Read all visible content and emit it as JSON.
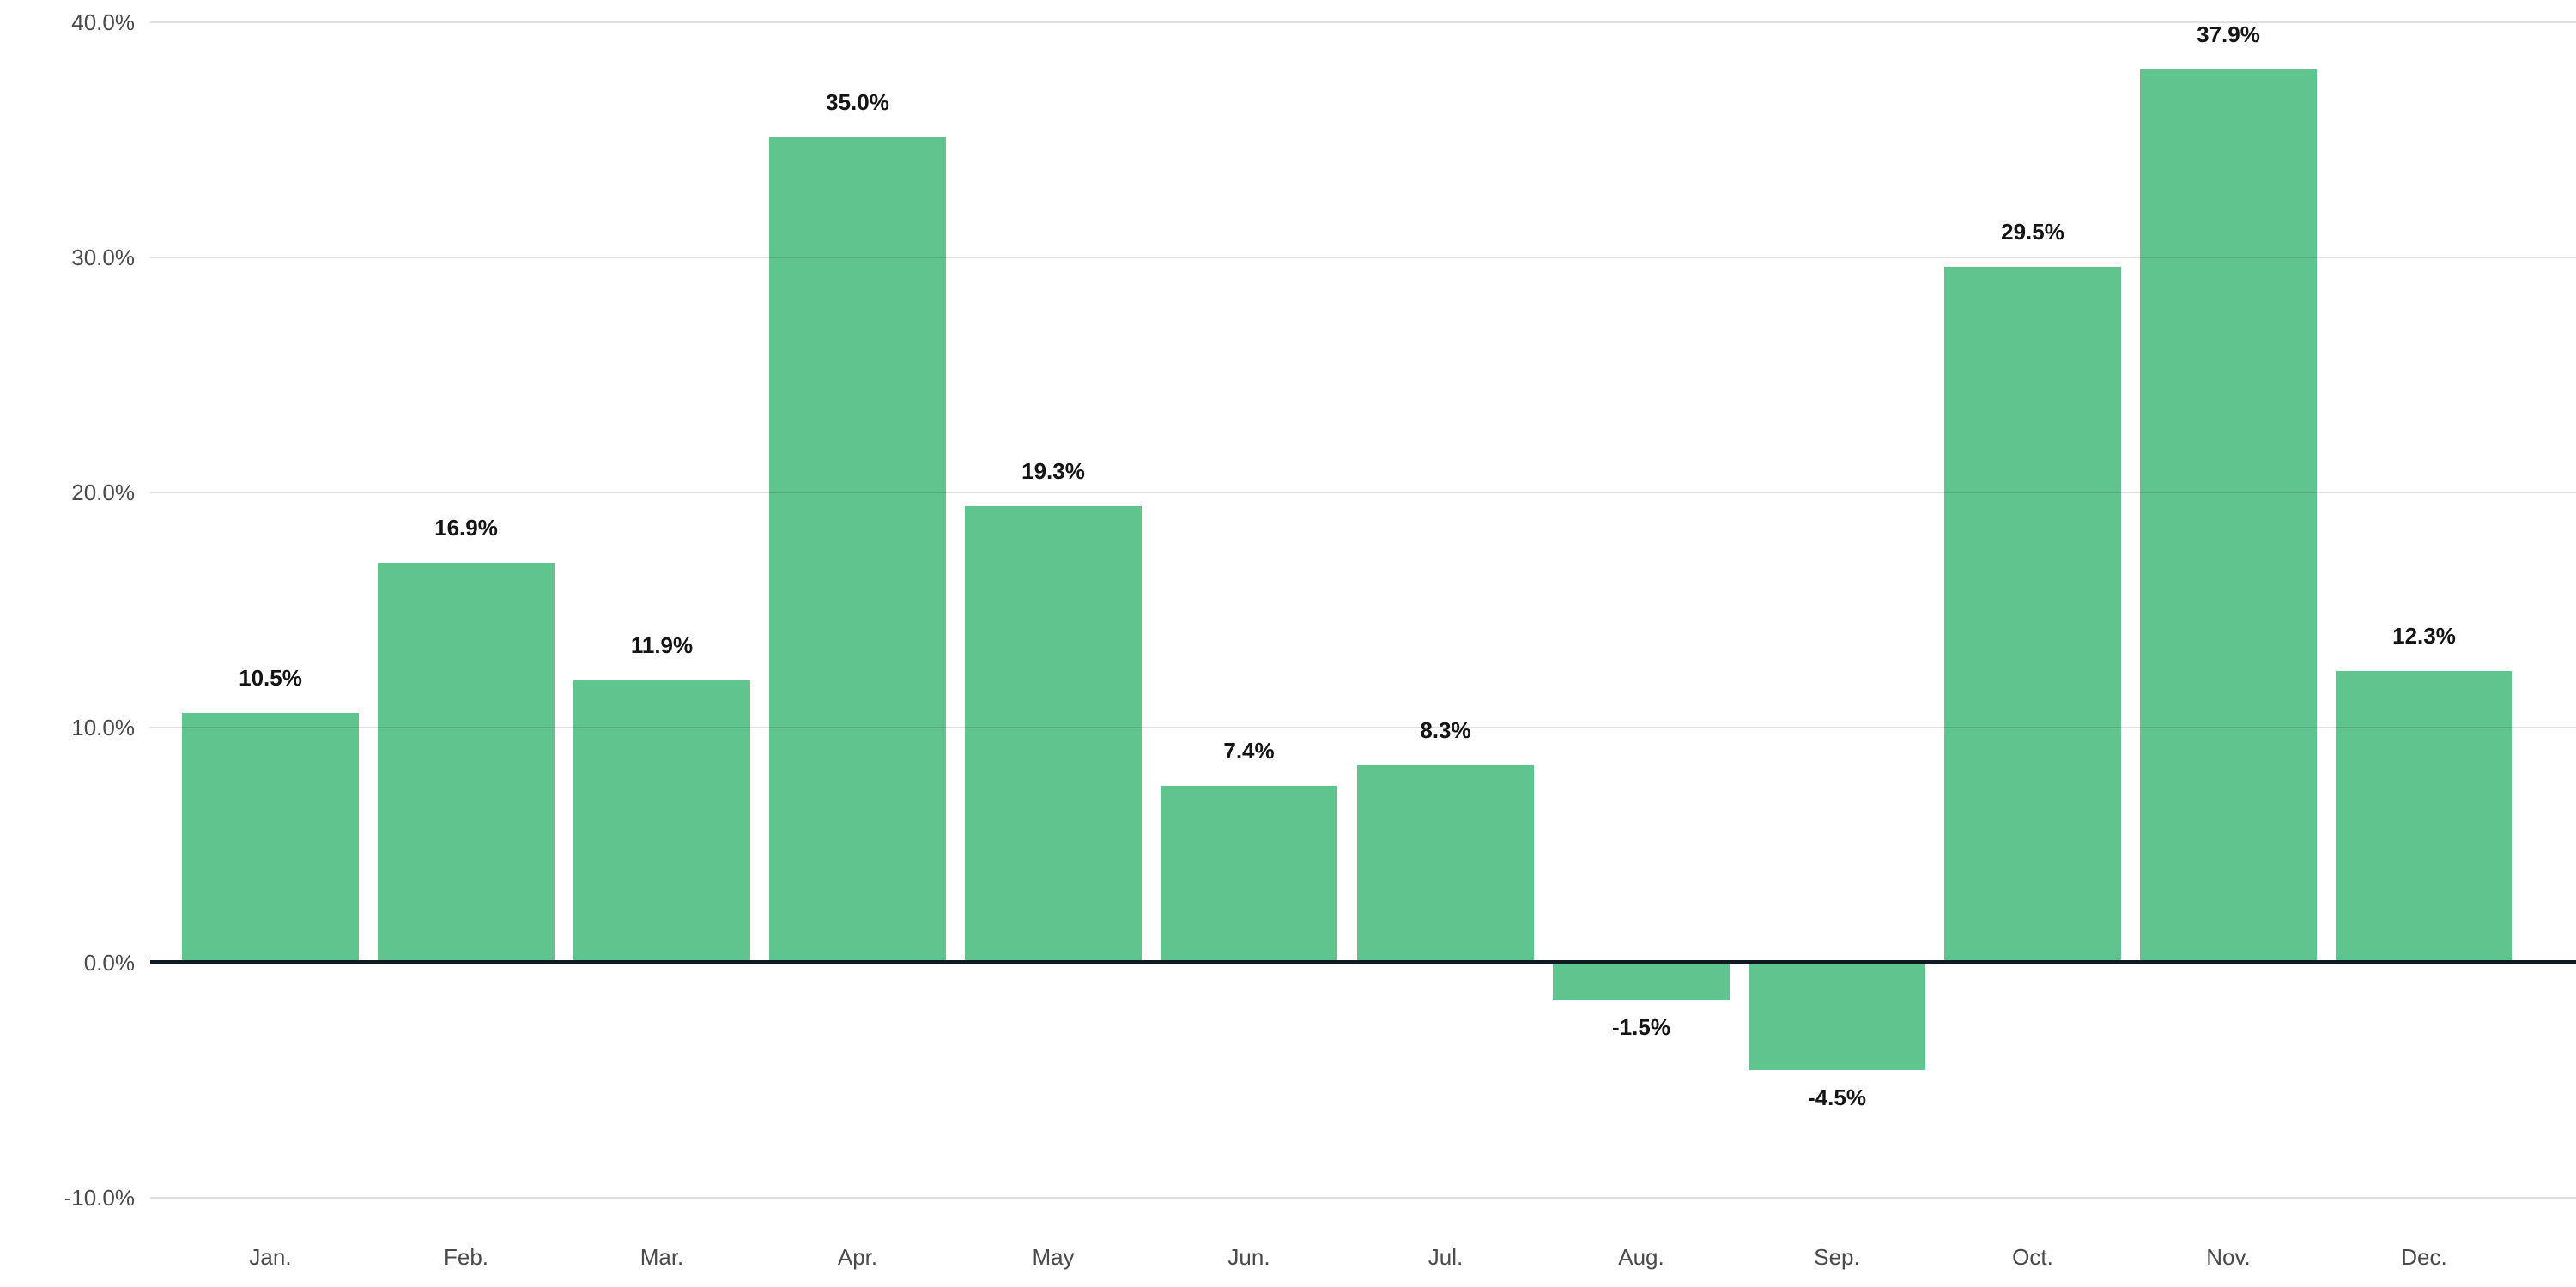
{
  "chart_data": {
    "type": "bar",
    "title": "",
    "xlabel": "",
    "ylabel": "",
    "categories": [
      "Jan.",
      "Feb.",
      "Mar.",
      "Apr.",
      "May",
      "Jun.",
      "Jul.",
      "Aug.",
      "Sep.",
      "Oct.",
      "Nov.",
      "Dec."
    ],
    "values": [
      10.5,
      16.9,
      11.9,
      35.0,
      19.3,
      7.4,
      8.3,
      -1.5,
      -4.5,
      29.5,
      37.9,
      12.3
    ],
    "bar_labels": [
      "10.5%",
      "16.9%",
      "11.9%",
      "35.0%",
      "19.3%",
      "7.4%",
      "8.3%",
      "-1.5%",
      "-4.5%",
      "29.5%",
      "37.9%",
      "12.3%"
    ],
    "y_ticks": [
      {
        "value": 40,
        "label": "40.0%"
      },
      {
        "value": 30,
        "label": "30.0%"
      },
      {
        "value": 20,
        "label": "20.0%"
      },
      {
        "value": 10,
        "label": "10.0%"
      },
      {
        "value": 0,
        "label": "0.0%"
      },
      {
        "value": -10,
        "label": "-10.0%"
      }
    ],
    "ylim": [
      -10,
      40
    ],
    "grid": true,
    "gridlines_over_bars": true,
    "legend": "none",
    "colors": {
      "bar": "#5fc48e",
      "zero_line": "#101b21",
      "axis_text": "#4a4a4a",
      "value_text": "#141414"
    }
  }
}
